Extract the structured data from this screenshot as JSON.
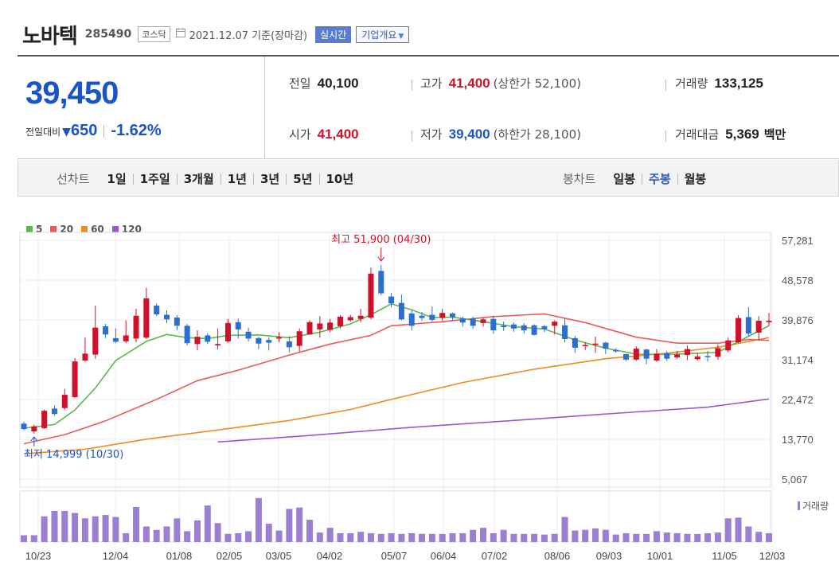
{
  "header": {
    "company": "노바텍",
    "code": "285490",
    "market": "코스닥",
    "calendar_icon": "calendar-icon",
    "date": "2021.12.07 기준(장마감)",
    "realtime_button": "실시간",
    "company_info_button": "기업개요"
  },
  "summary": {
    "price": "39,450",
    "change_label": "전일대비",
    "change_amount": "650",
    "change_rate": "-1.62%",
    "prev_close_label": "전일",
    "prev_close": "40,100",
    "high_label": "고가",
    "high": "41,400",
    "upper_limit": "(상한가 52,100)",
    "volume_label": "거래량",
    "volume": "133,125",
    "open_label": "시가",
    "open": "41,400",
    "low_label": "저가",
    "low": "39,400",
    "lower_limit": "(하한가 28,100)",
    "amount_label": "거래대금",
    "amount": "5,369",
    "amount_unit": "백만"
  },
  "toolbar": {
    "line_label": "선차트",
    "line_periods": [
      "1일",
      "1주일",
      "3개월",
      "1년",
      "3년",
      "5년",
      "10년"
    ],
    "candle_label": "봉차트",
    "candle_periods": [
      "일봉",
      "주봉",
      "월봉"
    ],
    "active_candle": "주봉"
  },
  "colors": {
    "up": "#d0112b",
    "down": "#2b6fd1",
    "ma5": "#5bb84a",
    "ma20": "#e85a5a",
    "ma60": "#f08a24",
    "ma120": "#9b59c6",
    "volume": "#9b7fd0"
  },
  "chart_data": {
    "type": "candlestick",
    "legend": [
      "5",
      "20",
      "60",
      "120"
    ],
    "y_ticks": [
      "57,281",
      "48,578",
      "39,876",
      "31,174",
      "22,472",
      "13,770",
      "5,067"
    ],
    "ylim": [
      5067,
      57281
    ],
    "x_ticks": [
      "10/23",
      "12/04",
      "01/08",
      "02/05",
      "03/05",
      "04/02",
      "05/07",
      "06/04",
      "07/02",
      "08/06",
      "09/03",
      "10/01",
      "11/05",
      "12/03"
    ],
    "max_label": "최고 51,900 (04/30)",
    "min_label": "최저 14,999 (10/30)",
    "volume_label": "거래량",
    "candles": [
      [
        17200,
        16000,
        17600,
        15700
      ],
      [
        15500,
        16600,
        17000,
        14999
      ],
      [
        16200,
        20000,
        20300,
        16000
      ],
      [
        20500,
        19300,
        21200,
        18900
      ],
      [
        20600,
        23500,
        24800,
        20200
      ],
      [
        23000,
        30800,
        31500,
        22800
      ],
      [
        31000,
        32500,
        36000,
        30700
      ],
      [
        32300,
        38200,
        43000,
        31400
      ],
      [
        38500,
        36700,
        39000,
        35900
      ],
      [
        35900,
        35100,
        38000,
        34800
      ],
      [
        35200,
        36500,
        39800,
        34800
      ],
      [
        35800,
        40800,
        42300,
        35000
      ],
      [
        36000,
        44600,
        46900,
        35700
      ],
      [
        43000,
        41100,
        43500,
        40700
      ],
      [
        41000,
        40000,
        42000,
        39200
      ],
      [
        40400,
        38600,
        40900,
        37600
      ],
      [
        38600,
        34800,
        39000,
        34300
      ],
      [
        34600,
        36200,
        37600,
        33200
      ],
      [
        36500,
        35100,
        37000,
        34600
      ],
      [
        34300,
        34600,
        38000,
        33400
      ],
      [
        35200,
        39200,
        40100,
        34900
      ],
      [
        39400,
        37800,
        40200,
        35800
      ],
      [
        37300,
        35800,
        38200,
        35200
      ],
      [
        35900,
        34700,
        36200,
        33500
      ],
      [
        35500,
        34900,
        36100,
        33200
      ],
      [
        35800,
        36100,
        37200,
        35000
      ],
      [
        35200,
        33900,
        36300,
        32800
      ],
      [
        34200,
        37400,
        38000,
        32900
      ],
      [
        36700,
        39400,
        39800,
        36700
      ],
      [
        37800,
        39100,
        40700,
        36000
      ],
      [
        37700,
        39300,
        40100,
        37200
      ],
      [
        38500,
        40600,
        40900,
        38000
      ],
      [
        39800,
        40500,
        41000,
        39500
      ],
      [
        40100,
        40800,
        42300,
        39400
      ],
      [
        40400,
        50000,
        51300,
        40000
      ],
      [
        50600,
        45700,
        51900,
        45300
      ],
      [
        45000,
        43500,
        45800,
        42600
      ],
      [
        43600,
        40000,
        45400,
        39800
      ],
      [
        41300,
        38600,
        42000,
        37600
      ],
      [
        40800,
        40300,
        41600,
        39700
      ],
      [
        41000,
        39900,
        42800,
        39500
      ],
      [
        40300,
        41400,
        42300,
        39700
      ],
      [
        41300,
        40500,
        41500,
        39800
      ],
      [
        40200,
        39300,
        40600,
        38400
      ],
      [
        40200,
        38600,
        40600,
        37900
      ],
      [
        39200,
        40000,
        40400,
        38400
      ],
      [
        40100,
        37600,
        40800,
        36900
      ],
      [
        38600,
        38300,
        39500,
        37500
      ],
      [
        38900,
        38000,
        39300,
        37300
      ],
      [
        38700,
        37600,
        39200,
        36900
      ],
      [
        38700,
        36600,
        38900,
        36500
      ],
      [
        38500,
        37900,
        38800,
        37200
      ],
      [
        38600,
        39500,
        39800,
        36700
      ],
      [
        38700,
        35700,
        40200,
        35000
      ],
      [
        35900,
        33800,
        36400,
        32700
      ],
      [
        34400,
        34400,
        35000,
        33300
      ],
      [
        34500,
        34700,
        36200,
        32700
      ],
      [
        34900,
        33600,
        35100,
        32400
      ],
      [
        33300,
        33000,
        33700,
        32700
      ],
      [
        32400,
        31200,
        32500,
        30900
      ],
      [
        31200,
        33600,
        34100,
        30900
      ],
      [
        33400,
        31400,
        33600,
        30200
      ],
      [
        31000,
        32500,
        33500,
        30700
      ],
      [
        32600,
        31400,
        33100,
        30900
      ],
      [
        31700,
        32300,
        33100,
        31400
      ],
      [
        32200,
        33500,
        34300,
        31100
      ],
      [
        31300,
        31900,
        32600,
        31000
      ],
      [
        32000,
        31800,
        33100,
        30800
      ],
      [
        31800,
        33700,
        34500,
        31200
      ],
      [
        33200,
        35400,
        36000,
        32800
      ],
      [
        35000,
        40300,
        40900,
        34800
      ],
      [
        40500,
        36900,
        42700,
        36300
      ],
      [
        37100,
        39700,
        40700,
        35500
      ],
      [
        39400,
        39700,
        41400,
        38600
      ]
    ],
    "ma5": [
      [
        0,
        16200
      ],
      [
        3,
        17000
      ],
      [
        5,
        20200
      ],
      [
        7,
        25000
      ],
      [
        9,
        31000
      ],
      [
        12,
        35200
      ],
      [
        14,
        36700
      ],
      [
        16,
        36000
      ],
      [
        18,
        35800
      ],
      [
        20,
        36500
      ],
      [
        23,
        36600
      ],
      [
        26,
        36000
      ],
      [
        29,
        37200
      ],
      [
        32,
        39000
      ],
      [
        34,
        41000
      ],
      [
        36,
        43400
      ],
      [
        38,
        42100
      ],
      [
        40,
        40400
      ],
      [
        42,
        40500
      ],
      [
        45,
        39500
      ],
      [
        48,
        38400
      ],
      [
        51,
        37900
      ],
      [
        54,
        35500
      ],
      [
        57,
        33700
      ],
      [
        60,
        32400
      ],
      [
        63,
        32300
      ],
      [
        66,
        32600
      ],
      [
        68,
        32800
      ],
      [
        71,
        36300
      ],
      [
        73,
        38600
      ]
    ],
    "ma20": [
      [
        0,
        12800
      ],
      [
        4,
        14800
      ],
      [
        8,
        17800
      ],
      [
        13,
        22500
      ],
      [
        17,
        26600
      ],
      [
        21,
        28900
      ],
      [
        26,
        32200
      ],
      [
        30,
        34600
      ],
      [
        34,
        36500
      ],
      [
        36,
        38600
      ],
      [
        41,
        39500
      ],
      [
        46,
        40600
      ],
      [
        51,
        41200
      ],
      [
        55,
        39300
      ],
      [
        60,
        36100
      ],
      [
        64,
        34800
      ],
      [
        68,
        34800
      ],
      [
        71,
        35600
      ],
      [
        73,
        35400
      ]
    ],
    "ma60": [
      [
        0,
        10600
      ],
      [
        6,
        11600
      ],
      [
        12,
        13800
      ],
      [
        19,
        15800
      ],
      [
        26,
        17900
      ],
      [
        32,
        20300
      ],
      [
        36,
        22500
      ],
      [
        43,
        26200
      ],
      [
        50,
        29100
      ],
      [
        57,
        31400
      ],
      [
        63,
        32600
      ],
      [
        68,
        33900
      ],
      [
        73,
        36000
      ]
    ],
    "ma120": [
      [
        19,
        13200
      ],
      [
        28,
        14600
      ],
      [
        38,
        16400
      ],
      [
        48,
        17900
      ],
      [
        57,
        19300
      ],
      [
        67,
        20800
      ],
      [
        73,
        22600
      ]
    ],
    "volume": [
      10,
      10,
      38,
      46,
      46,
      43,
      35,
      38,
      40,
      37,
      13,
      52,
      23,
      18,
      23,
      35,
      16,
      32,
      54,
      28,
      12,
      13,
      16,
      65,
      27,
      17,
      49,
      51,
      33,
      14,
      21,
      13,
      13,
      15,
      13,
      12,
      13,
      12,
      13,
      12,
      12,
      12,
      13,
      13,
      18,
      21,
      13,
      18,
      12,
      12,
      12,
      11,
      12,
      37,
      17,
      18,
      20,
      18,
      11,
      13,
      12,
      12,
      16,
      14,
      13,
      12,
      12,
      13,
      14,
      35,
      36,
      23,
      15,
      13
    ]
  }
}
